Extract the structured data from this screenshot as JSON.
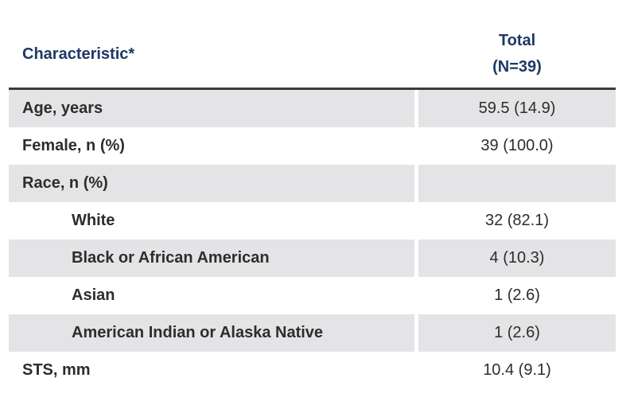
{
  "colors": {
    "header_text": "#1f3864",
    "body_text": "#2d2d2d",
    "shaded_row_bg": "#e4e4e6",
    "rule": "#3b3b3b",
    "page_bg": "#ffffff"
  },
  "table": {
    "header": {
      "characteristic_label": "Characteristic*",
      "total_label": "Total",
      "total_n": "(N=39)"
    },
    "rows": [
      {
        "label": "Age, years",
        "value": "59.5 (14.9)",
        "indent": false,
        "shaded": true
      },
      {
        "label": "Female, n (%)",
        "value": "39 (100.0)",
        "indent": false,
        "shaded": false
      },
      {
        "label": "Race, n (%)",
        "value": "",
        "indent": false,
        "shaded": true
      },
      {
        "label": "White",
        "value": "32 (82.1)",
        "indent": true,
        "shaded": false
      },
      {
        "label": "Black or African American",
        "value": "4 (10.3)",
        "indent": true,
        "shaded": true
      },
      {
        "label": "Asian",
        "value": "1 (2.6)",
        "indent": true,
        "shaded": false
      },
      {
        "label": "American Indian or Alaska Native",
        "value": "1 (2.6)",
        "indent": true,
        "shaded": true
      },
      {
        "label": "STS, mm",
        "value": "10.4 (9.1)",
        "indent": false,
        "shaded": false
      }
    ]
  }
}
